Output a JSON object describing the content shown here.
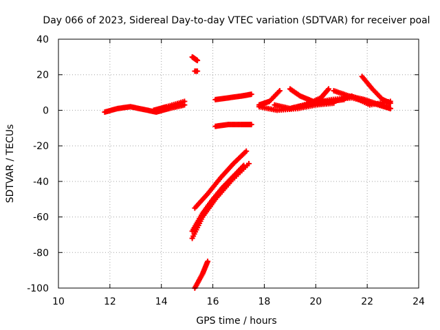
{
  "chart_data": {
    "type": "scatter",
    "title": "Day 066 of 2023, Sidereal Day-to-day VTEC variation (SDTVAR) for receiver poal",
    "xlabel": "GPS time / hours",
    "ylabel": "SDTVAR / TECUs",
    "xlim": [
      10,
      24
    ],
    "ylim": [
      -100,
      40
    ],
    "xticks": [
      "10",
      "12",
      "14",
      "16",
      "18",
      "20",
      "22",
      "24"
    ],
    "yticks": [
      "40",
      "20",
      "0",
      "-20",
      "-40",
      "-60",
      "-80",
      "-100"
    ],
    "grid": true,
    "legend": "none",
    "series_color": "#ff0000",
    "series": [
      {
        "x": [
          11.8,
          12.3,
          12.8,
          13.3,
          13.8,
          14.3,
          14.9
        ],
        "y": [
          -1,
          1,
          2,
          0.5,
          -1,
          1,
          3
        ]
      },
      {
        "x": [
          13.7,
          14.2,
          14.9
        ],
        "y": [
          0,
          2,
          5
        ]
      },
      {
        "x": [
          15.2,
          15.4
        ],
        "y": [
          30,
          28
        ]
      },
      {
        "x": [
          15.3,
          15.4
        ],
        "y": [
          22,
          22
        ]
      },
      {
        "x": [
          16.1,
          16.6,
          17.1,
          17.5
        ],
        "y": [
          6,
          7,
          8,
          9
        ]
      },
      {
        "x": [
          16.1,
          16.6,
          17.1,
          17.5
        ],
        "y": [
          -9,
          -8,
          -8,
          -8
        ]
      },
      {
        "x": [
          15.3,
          15.8,
          16.3,
          16.8,
          17.3
        ],
        "y": [
          -55,
          -47,
          -38,
          -30,
          -23
        ]
      },
      {
        "x": [
          15.2,
          15.6,
          16.0,
          16.4,
          16.8,
          17.2
        ],
        "y": [
          -68,
          -58,
          -50,
          -43,
          -37,
          -31
        ]
      },
      {
        "x": [
          15.2,
          15.6,
          16.1,
          16.7,
          17.4
        ],
        "y": [
          -72,
          -60,
          -50,
          -40,
          -30
        ]
      },
      {
        "x": [
          15.3,
          15.6,
          15.8
        ],
        "y": [
          -100,
          -92,
          -85
        ]
      },
      {
        "x": [
          17.8,
          18.2,
          18.6
        ],
        "y": [
          3,
          5,
          11
        ]
      },
      {
        "x": [
          17.8,
          18.5,
          19.3,
          20.0,
          20.7
        ],
        "y": [
          2,
          0,
          1,
          3,
          4
        ]
      },
      {
        "x": [
          18.4,
          19.0,
          19.6,
          20.2,
          20.5
        ],
        "y": [
          3,
          1,
          3,
          7,
          12
        ]
      },
      {
        "x": [
          19.0,
          19.4,
          19.9,
          20.5,
          21.1
        ],
        "y": [
          12,
          8,
          5,
          5,
          6
        ]
      },
      {
        "x": [
          19.0,
          19.8,
          20.6,
          21.4,
          22.2,
          22.9
        ],
        "y": [
          1,
          4,
          6,
          7,
          4,
          1
        ]
      },
      {
        "x": [
          20.7,
          21.3,
          21.9,
          22.5,
          22.9
        ],
        "y": [
          11,
          8,
          6,
          3,
          1
        ]
      },
      {
        "x": [
          20.0,
          20.7,
          21.4,
          22.1,
          22.9
        ],
        "y": [
          4,
          5,
          8,
          3,
          5
        ]
      },
      {
        "x": [
          21.8,
          22.2,
          22.6,
          22.9
        ],
        "y": [
          19,
          12,
          6,
          4
        ]
      }
    ]
  }
}
